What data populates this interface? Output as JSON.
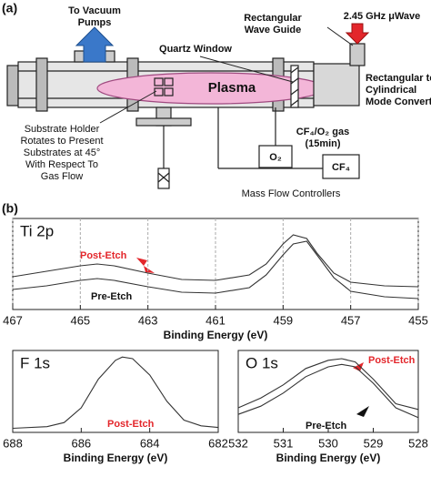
{
  "diagram": {
    "panel_label": "(a)",
    "vacuum_label": [
      "To Vacuum",
      "Pumps"
    ],
    "waveguide_label": [
      "Rectangular",
      "Wave Guide"
    ],
    "microwave_label": "2.45 GHz μWave",
    "window_label": "Quartz Window",
    "plasma_label": "Plasma",
    "converter_label": [
      "Rectangular to",
      "Cylindrical",
      "Mode Converter"
    ],
    "substrate_label": [
      "Substrate Holder",
      "Rotates to Present",
      "Substrates at 45°",
      "With Respect To",
      "Gas Flow"
    ],
    "gas_label": [
      "CF₄/O₂ gas",
      "(15min)"
    ],
    "o2_label": "O₂",
    "cf4_label": "CF₄",
    "mfc_label": "Mass Flow Controllers"
  },
  "panel_b_label": "(b)",
  "chart_data": [
    {
      "type": "line",
      "title": "Ti 2p",
      "xlabel": "Binding Energy (eV)",
      "xlim": [
        467,
        455
      ],
      "xticks": [
        467,
        465,
        463,
        461,
        459,
        457,
        455
      ],
      "ylim": [
        0,
        1
      ],
      "grid": true,
      "annotations": [
        "Post-Etch",
        "Pre-Etch"
      ],
      "series": [
        {
          "name": "Post-Etch",
          "color": "#333333",
          "x": [
            467,
            466,
            465,
            464.5,
            464,
            463,
            462,
            461,
            460,
            459.5,
            459,
            458.7,
            458.3,
            458,
            457.5,
            457,
            456,
            455
          ],
          "values": [
            0.36,
            0.42,
            0.48,
            0.5,
            0.48,
            0.4,
            0.33,
            0.32,
            0.38,
            0.5,
            0.72,
            0.82,
            0.78,
            0.62,
            0.4,
            0.3,
            0.26,
            0.25
          ]
        },
        {
          "name": "Pre-Etch",
          "color": "#333333",
          "x": [
            467,
            466,
            465,
            464.5,
            464,
            463,
            462,
            461,
            460,
            459.5,
            459,
            458.7,
            458.3,
            458,
            457.5,
            457,
            456,
            455
          ],
          "values": [
            0.22,
            0.26,
            0.32,
            0.34,
            0.32,
            0.25,
            0.19,
            0.18,
            0.24,
            0.38,
            0.6,
            0.72,
            0.75,
            0.6,
            0.35,
            0.2,
            0.14,
            0.12
          ]
        }
      ]
    },
    {
      "type": "line",
      "title": "F 1s",
      "xlabel": "Binding Energy (eV)",
      "xlim": [
        688,
        682
      ],
      "xticks": [
        688,
        686,
        684,
        682
      ],
      "ylim": [
        0,
        1
      ],
      "grid": false,
      "annotations": [
        "Post-Etch"
      ],
      "series": [
        {
          "name": "Post-Etch",
          "color": "#333333",
          "x": [
            688,
            687,
            686.5,
            686,
            685.5,
            685,
            684.8,
            684.5,
            684,
            683.5,
            683,
            682.5,
            682
          ],
          "values": [
            0.05,
            0.07,
            0.12,
            0.3,
            0.65,
            0.88,
            0.92,
            0.9,
            0.7,
            0.38,
            0.15,
            0.08,
            0.06
          ]
        }
      ]
    },
    {
      "type": "line",
      "title": "O 1s",
      "xlabel": "Binding Energy (eV)",
      "xlim": [
        532,
        528
      ],
      "xticks": [
        532,
        531,
        530,
        529,
        528
      ],
      "ylim": [
        0,
        1
      ],
      "grid": false,
      "annotations": [
        "Post-Etch",
        "Pre-Etch"
      ],
      "series": [
        {
          "name": "Post-Etch",
          "color": "#333333",
          "x": [
            532,
            531.5,
            531,
            530.5,
            530,
            529.7,
            529.4,
            529,
            528.5,
            528
          ],
          "values": [
            0.3,
            0.42,
            0.58,
            0.78,
            0.88,
            0.9,
            0.86,
            0.65,
            0.35,
            0.28
          ]
        },
        {
          "name": "Pre-Etch",
          "color": "#333333",
          "x": [
            532,
            531.5,
            531,
            530.5,
            530,
            529.7,
            529.4,
            529,
            528.5,
            528
          ],
          "values": [
            0.22,
            0.32,
            0.48,
            0.68,
            0.8,
            0.83,
            0.8,
            0.6,
            0.3,
            0.18
          ]
        }
      ]
    }
  ]
}
